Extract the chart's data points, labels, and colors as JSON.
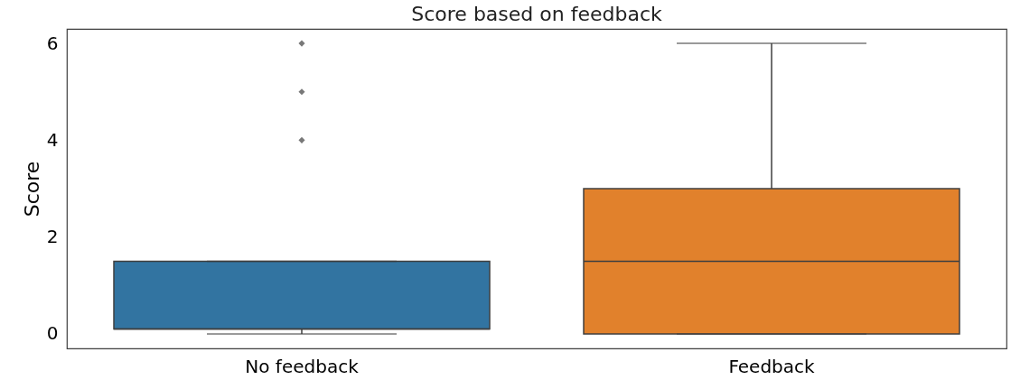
{
  "chart_data": {
    "type": "box",
    "title": "Score based on feedback",
    "ylabel": "Score",
    "categories": [
      "No feedback",
      "Feedback"
    ],
    "colors": [
      "#3274a1",
      "#e1812c"
    ],
    "boxes": [
      {
        "low": 0,
        "q1": 0.1,
        "median": 0.1,
        "q3": 1.5,
        "high": 1.5,
        "outliers": [
          4,
          5,
          6
        ]
      },
      {
        "low": 0,
        "q1": 0,
        "median": 1.5,
        "q3": 3,
        "high": 6
      }
    ],
    "ylim": [
      -0.3,
      6.3
    ],
    "yticks": [
      0,
      2,
      4,
      6
    ],
    "grid": false,
    "marker": "diamond"
  }
}
